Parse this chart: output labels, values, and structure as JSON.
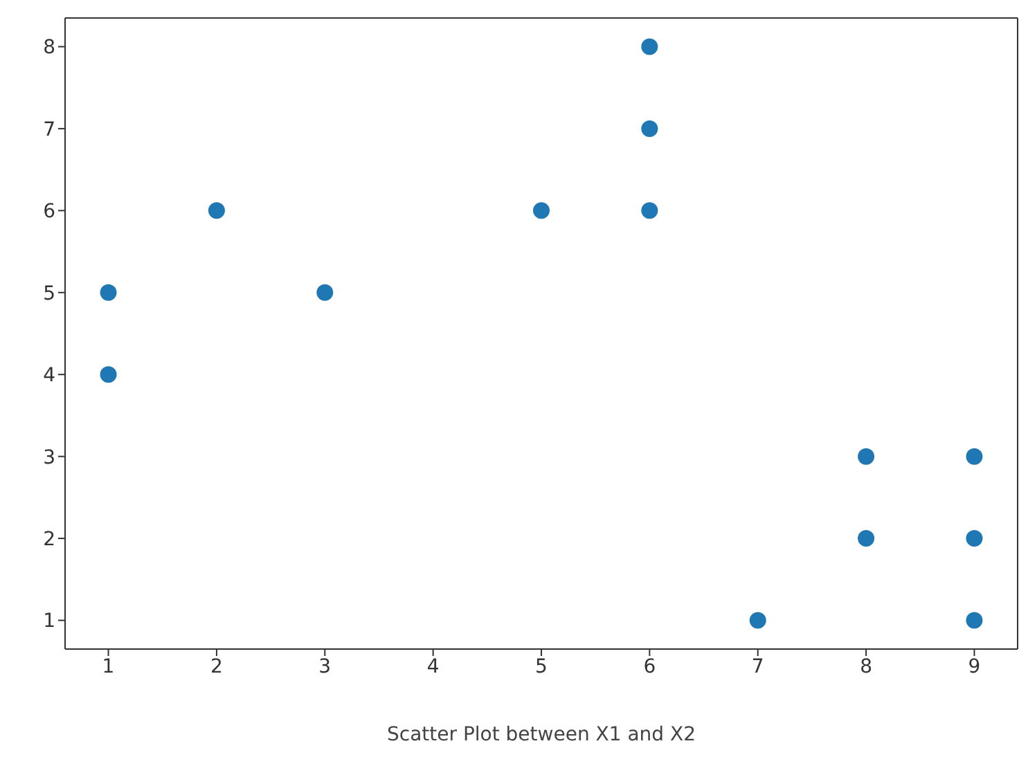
{
  "chart_data": {
    "type": "scatter",
    "xlabel": "Scatter Plot between X1 and X2",
    "x": [
      1,
      1,
      2,
      3,
      5,
      6,
      6,
      6,
      7,
      8,
      8,
      9,
      9,
      9
    ],
    "values": [
      5,
      4,
      6,
      5,
      6,
      8,
      7,
      6,
      1,
      3,
      2,
      3,
      2,
      1
    ],
    "color": "#1f77b4",
    "marker": "circle",
    "grid": false,
    "xlim": [
      0.6,
      9.4
    ],
    "xticks": [
      1,
      2,
      3,
      4,
      5,
      6,
      7,
      8,
      9
    ],
    "ylim": [
      0.65,
      8.35
    ],
    "yticks": [
      1,
      2,
      3,
      4,
      5,
      6,
      7,
      8
    ]
  }
}
